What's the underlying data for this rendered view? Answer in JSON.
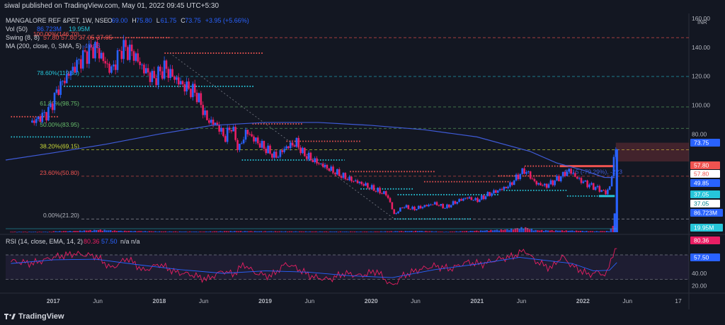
{
  "header": {
    "publisher": "siwal published on TradingView.com, May 01, 2022 09:45 UTC+5:30"
  },
  "legend": {
    "symbol": "MANGALORE REF &PET, 1W, NSE",
    "ohlc": [
      {
        "k": "O",
        "v": "69.00"
      },
      {
        "k": "H",
        "v": "75.80"
      },
      {
        "k": "L",
        "v": "61.75"
      },
      {
        "k": "C",
        "v": "73.75"
      }
    ],
    "change": "+3.95 (+5.66%)",
    "vol_label": "Vol (50)",
    "vol_value": "86.723M",
    "vol_ma": "19.95M",
    "swing_label": "Swing (8, 8)",
    "swing_values": "57.80  57.80  37.05  37.05",
    "ma_label": "MA (200, close, 0, SMA, 5)",
    "ma_value": "49.85"
  },
  "rsi_legend": {
    "label": "RSI (14, close, EMA, 14, 2)",
    "rsi": "80.36",
    "ema": "57.50",
    "extra": "n/a  n/a"
  },
  "currency": "INR",
  "fib_labels": [
    {
      "text": "100.00%(146.70)",
      "value": 146.7,
      "color": "#ef5350"
    },
    {
      "text": "78.60%(119.85)",
      "value": 119.85,
      "color": "#26c6da"
    },
    {
      "text": "61.80%(98.75)",
      "value": 98.75,
      "color": "#66bb6a"
    },
    {
      "text": "50.00%(83.95)",
      "value": 83.95,
      "color": "#66bb6a"
    },
    {
      "text": "38.20%(69.15)",
      "value": 69.15,
      "color": "#cddc39"
    },
    {
      "text": "23.60%(50.80)",
      "value": 50.8,
      "color": "#ef5350"
    },
    {
      "text": "0.00%(21.20)",
      "value": 21.2,
      "color": "#b2b5be"
    }
  ],
  "trend_label": "-43.15 (-79.29%), -223",
  "price_badges": [
    {
      "text": "73.75",
      "value": 73.75,
      "bg": "#2962ff",
      "fg": "#ffffff"
    },
    {
      "text": "57.80",
      "value": 57.8,
      "bg": "#ef5350",
      "fg": "#ffffff"
    },
    {
      "text": "57.80",
      "value": 57.8,
      "bg": "#ffffff",
      "fg": "#ef5350"
    },
    {
      "text": "49.85",
      "value": 49.85,
      "bg": "#2962ff",
      "fg": "#ffffff"
    },
    {
      "text": "37.05",
      "value": 37.05,
      "bg": "#26c6da",
      "fg": "#ffffff"
    },
    {
      "text": "37.05",
      "value": 37.05,
      "bg": "#ffffff",
      "fg": "#00838f"
    }
  ],
  "volume_badges": [
    {
      "text": "86.723M",
      "bg": "#2962ff",
      "fg": "#ffffff"
    },
    {
      "text": "19.95M",
      "bg": "#26c6da",
      "fg": "#ffffff"
    }
  ],
  "rsi_badges": [
    {
      "text": "80.36",
      "value": 80.36,
      "bg": "#e91e63",
      "fg": "#ffffff"
    },
    {
      "text": "57.50",
      "value": 57.5,
      "bg": "#2962ff",
      "fg": "#ffffff"
    }
  ],
  "brand": "TradingView",
  "colors": {
    "up": "#2962ff",
    "down": "#e91e63",
    "ma": "#3f5bd8",
    "rsi": "#e91e63",
    "rsi_ema": "#2962ff",
    "background": "#131722",
    "text": "#b2b5be"
  },
  "chart_data": [
    {
      "type": "candlestick",
      "title": "MANGALORE REF &PET, 1W, NSE",
      "y_axis_ticks": [
        20,
        40,
        60,
        80,
        100,
        120,
        140,
        160
      ],
      "y_axis_labels": [
        "",
        "",
        "",
        "80.00",
        "100.00",
        "120.00",
        "140.00",
        "160.00"
      ],
      "x_tick_labels": [
        "2017",
        "Jun",
        "2018",
        "Jun",
        "2019",
        "Jun",
        "2020",
        "Jun",
        "2021",
        "Jun",
        "2022",
        "Jun",
        "17"
      ],
      "x_tick_times": [
        2017.0,
        2017.42,
        2018.0,
        2018.42,
        2019.0,
        2019.42,
        2020.0,
        2020.42,
        2021.0,
        2021.42,
        2022.0,
        2022.42,
        2022.9
      ],
      "price_path": [
        [
          2016.8,
          88
        ],
        [
          2016.95,
          95
        ],
        [
          2017.05,
          112
        ],
        [
          2017.15,
          122
        ],
        [
          2017.3,
          135
        ],
        [
          2017.4,
          140
        ],
        [
          2017.5,
          128
        ],
        [
          2017.55,
          124
        ],
        [
          2017.65,
          140
        ],
        [
          2017.75,
          136
        ],
        [
          2017.85,
          125
        ],
        [
          2017.95,
          118
        ],
        [
          2018.05,
          126
        ],
        [
          2018.1,
          122
        ],
        [
          2018.2,
          115
        ],
        [
          2018.35,
          108
        ],
        [
          2018.45,
          90
        ],
        [
          2018.55,
          86
        ],
        [
          2018.62,
          77
        ],
        [
          2018.68,
          86
        ],
        [
          2018.75,
          69
        ],
        [
          2018.82,
          82
        ],
        [
          2018.9,
          76
        ],
        [
          2019.0,
          70
        ],
        [
          2019.1,
          64
        ],
        [
          2019.2,
          71
        ],
        [
          2019.3,
          74
        ],
        [
          2019.35,
          67
        ],
        [
          2019.45,
          62
        ],
        [
          2019.55,
          58
        ],
        [
          2019.65,
          54
        ],
        [
          2019.75,
          50
        ],
        [
          2019.82,
          48
        ],
        [
          2019.9,
          46
        ],
        [
          2020.05,
          41
        ],
        [
          2020.15,
          38
        ],
        [
          2020.22,
          24
        ],
        [
          2020.3,
          30
        ],
        [
          2020.4,
          28
        ],
        [
          2020.5,
          30
        ],
        [
          2020.6,
          32
        ],
        [
          2020.7,
          29
        ],
        [
          2020.8,
          33
        ],
        [
          2020.9,
          36
        ],
        [
          2021.0,
          34
        ],
        [
          2021.1,
          38
        ],
        [
          2021.2,
          41
        ],
        [
          2021.3,
          44
        ],
        [
          2021.4,
          52
        ],
        [
          2021.45,
          55
        ],
        [
          2021.5,
          51
        ],
        [
          2021.55,
          46
        ],
        [
          2021.65,
          44
        ],
        [
          2021.72,
          47
        ],
        [
          2021.8,
          51
        ],
        [
          2021.87,
          55
        ],
        [
          2021.95,
          49
        ],
        [
          2022.05,
          45
        ],
        [
          2022.15,
          42
        ],
        [
          2022.22,
          39
        ],
        [
          2022.26,
          45
        ],
        [
          2022.28,
          55
        ],
        [
          2022.3,
          69
        ],
        [
          2022.32,
          73.75
        ]
      ],
      "moving_average_200": [
        [
          2016.55,
          62
        ],
        [
          2017.0,
          67
        ],
        [
          2017.5,
          73
        ],
        [
          2018.0,
          80
        ],
        [
          2018.5,
          86
        ],
        [
          2019.0,
          88
        ],
        [
          2019.5,
          88
        ],
        [
          2020.0,
          86
        ],
        [
          2020.5,
          83
        ],
        [
          2021.0,
          78
        ],
        [
          2021.5,
          68
        ],
        [
          2021.75,
          60
        ],
        [
          2022.0,
          55
        ],
        [
          2022.2,
          50
        ],
        [
          2022.3,
          49.85
        ]
      ],
      "swing_levels": [
        {
          "value": 146.7,
          "from": 2017.35,
          "to": 2018.1,
          "color": "#ef5350"
        },
        {
          "value": 136,
          "from": 2018.05,
          "to": 2018.98,
          "color": "#ef5350"
        },
        {
          "value": 113,
          "from": 2017.1,
          "to": 2018.9,
          "color": "#26c6da"
        },
        {
          "value": 92,
          "from": 2016.6,
          "to": 2017.05,
          "color": "#ef5350"
        },
        {
          "value": 78,
          "from": 2016.6,
          "to": 2017.35,
          "color": "#26c6da"
        },
        {
          "value": 87,
          "from": 2018.88,
          "to": 2019.35,
          "color": "#ef5350"
        },
        {
          "value": 75,
          "from": 2019.2,
          "to": 2019.9,
          "color": "#ef5350"
        },
        {
          "value": 62,
          "from": 2018.78,
          "to": 2019.75,
          "color": "#26c6da"
        },
        {
          "value": 54,
          "from": 2019.8,
          "to": 2020.6,
          "color": "#ef5350"
        },
        {
          "value": 38,
          "from": 2020.25,
          "to": 2021.2,
          "color": "#26c6da"
        },
        {
          "value": 42,
          "from": 2019.9,
          "to": 2020.4,
          "color": "#26c6da"
        },
        {
          "value": 47,
          "from": 2020.5,
          "to": 2021.3,
          "color": "#ef5350"
        },
        {
          "value": 51,
          "from": 2021.2,
          "to": 2021.75,
          "color": "#ef5350"
        },
        {
          "value": 57.8,
          "from": 2021.45,
          "to": 2022.26,
          "color": "#ef5350"
        },
        {
          "value": 37.05,
          "from": 2021.85,
          "to": 2022.3,
          "color": "#26c6da"
        },
        {
          "value": 41,
          "from": 2021.25,
          "to": 2021.85,
          "color": "#26c6da"
        },
        {
          "value": 21.2,
          "from": 2020.22,
          "to": 2020.95,
          "color": "#26c6da"
        }
      ],
      "volume": [
        [
          2017.0,
          1.2
        ],
        [
          2017.2,
          1.5
        ],
        [
          2017.45,
          3.0
        ],
        [
          2017.6,
          1.8
        ],
        [
          2018.0,
          1.0
        ],
        [
          2018.4,
          0.8
        ],
        [
          2018.7,
          1.4
        ],
        [
          2019.0,
          1.1
        ],
        [
          2019.5,
          0.9
        ],
        [
          2020.0,
          0.8
        ],
        [
          2020.45,
          1.6
        ],
        [
          2020.7,
          0.6
        ],
        [
          2021.0,
          1.8
        ],
        [
          2021.3,
          3.5
        ],
        [
          2021.45,
          6.0
        ],
        [
          2021.55,
          2.5
        ],
        [
          2021.9,
          2.0
        ],
        [
          2022.1,
          1.2
        ],
        [
          2022.25,
          1.5
        ],
        [
          2022.3,
          11.0
        ],
        [
          2022.32,
          19.0
        ]
      ],
      "volume_ma": 19.95,
      "volume_last": 86.723,
      "volume_unit": "M"
    },
    {
      "type": "line",
      "title": "RSI (14, close, EMA, 14, 2)",
      "y_axis_labels": [
        "20.00",
        "40.00"
      ],
      "y_axis_ticks": [
        20,
        40
      ],
      "levels": [
        70,
        30
      ],
      "series": [
        {
          "name": "RSI",
          "values": [
            [
              2016.6,
              60
            ],
            [
              2016.8,
              56
            ],
            [
              2017.0,
              66
            ],
            [
              2017.2,
              72
            ],
            [
              2017.4,
              68
            ],
            [
              2017.55,
              48
            ],
            [
              2017.7,
              65
            ],
            [
              2017.85,
              44
            ],
            [
              2018.0,
              55
            ],
            [
              2018.15,
              42
            ],
            [
              2018.3,
              38
            ],
            [
              2018.45,
              30
            ],
            [
              2018.6,
              44
            ],
            [
              2018.7,
              38
            ],
            [
              2018.8,
              55
            ],
            [
              2018.9,
              41
            ],
            [
              2019.05,
              35
            ],
            [
              2019.2,
              56
            ],
            [
              2019.3,
              48
            ],
            [
              2019.45,
              34
            ],
            [
              2019.6,
              30
            ],
            [
              2019.75,
              40
            ],
            [
              2019.9,
              36
            ],
            [
              2020.05,
              44
            ],
            [
              2020.2,
              19
            ],
            [
              2020.3,
              36
            ],
            [
              2020.45,
              46
            ],
            [
              2020.6,
              52
            ],
            [
              2020.75,
              47
            ],
            [
              2020.9,
              58
            ],
            [
              2021.05,
              55
            ],
            [
              2021.2,
              63
            ],
            [
              2021.35,
              68
            ],
            [
              2021.45,
              78
            ],
            [
              2021.55,
              60
            ],
            [
              2021.7,
              48
            ],
            [
              2021.8,
              68
            ],
            [
              2021.9,
              52
            ],
            [
              2022.05,
              38
            ],
            [
              2022.15,
              42
            ],
            [
              2022.22,
              36
            ],
            [
              2022.28,
              72
            ],
            [
              2022.32,
              80.36
            ]
          ]
        },
        {
          "name": "EMA",
          "values": [
            [
              2016.6,
              56
            ],
            [
              2017.0,
              62
            ],
            [
              2017.4,
              63
            ],
            [
              2017.8,
              54
            ],
            [
              2018.2,
              46
            ],
            [
              2018.6,
              40
            ],
            [
              2019.0,
              44
            ],
            [
              2019.4,
              42
            ],
            [
              2019.8,
              36
            ],
            [
              2020.2,
              33
            ],
            [
              2020.6,
              46
            ],
            [
              2021.0,
              55
            ],
            [
              2021.4,
              66
            ],
            [
              2021.6,
              62
            ],
            [
              2021.9,
              56
            ],
            [
              2022.1,
              44
            ],
            [
              2022.25,
              45
            ],
            [
              2022.32,
              57.5
            ]
          ]
        }
      ]
    }
  ]
}
